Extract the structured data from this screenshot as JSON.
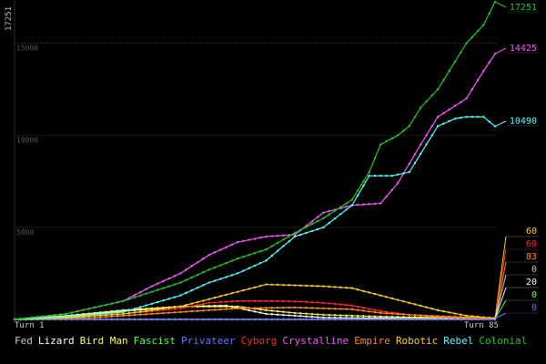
{
  "chart_data": {
    "type": "line",
    "y_axis_top_label": "17251",
    "y_ticks": [
      5000,
      10000,
      15000
    ],
    "ylim": [
      0,
      17251
    ],
    "x_range": [
      1,
      85
    ],
    "x_tick_labels": [
      "Turn 1",
      "Turn 85"
    ],
    "grid": true,
    "legend_placement": "bottom",
    "series": [
      {
        "name": "Fed",
        "color": "#c8c8c8",
        "end_label": "0",
        "x": [
          1,
          20,
          40,
          60,
          85
        ],
        "values": [
          0,
          0,
          0,
          0,
          0
        ]
      },
      {
        "name": "Lizard",
        "color": "#ffffff",
        "end_label": "20",
        "x": [
          1,
          10,
          20,
          30,
          38,
          45,
          55,
          65,
          75,
          85
        ],
        "values": [
          0,
          150,
          450,
          700,
          750,
          300,
          100,
          60,
          30,
          20
        ]
      },
      {
        "name": "Bird Man",
        "color": "#ffff55",
        "end_label": "60",
        "x": [
          1,
          10,
          20,
          30,
          40,
          45,
          50,
          55,
          60,
          65,
          70,
          75,
          80,
          85
        ],
        "values": [
          0,
          200,
          500,
          700,
          700,
          500,
          350,
          250,
          200,
          150,
          120,
          100,
          80,
          60
        ]
      },
      {
        "name": "Fascist",
        "color": "#55ff55",
        "end_label": "0",
        "x": [
          1,
          15,
          30,
          45,
          60,
          85
        ],
        "values": [
          0,
          0,
          0,
          0,
          0,
          0
        ]
      },
      {
        "name": "Privateer",
        "color": "#6f6fff",
        "end_label": "0",
        "x": [
          1,
          20,
          40,
          60,
          85
        ],
        "values": [
          0,
          0,
          0,
          0,
          0
        ]
      },
      {
        "name": "Cyborg",
        "color": "#ff2a2a",
        "end_label": "60",
        "x": [
          1,
          10,
          20,
          30,
          35,
          40,
          45,
          50,
          55,
          60,
          65,
          70,
          75,
          80,
          85
        ],
        "values": [
          0,
          100,
          300,
          600,
          900,
          1000,
          1000,
          980,
          900,
          750,
          450,
          250,
          150,
          100,
          60
        ]
      },
      {
        "name": "Crystalline",
        "color": "#ff55ff",
        "end_label": "14425",
        "x": [
          1,
          10,
          20,
          25,
          30,
          35,
          40,
          45,
          50,
          55,
          60,
          65,
          68,
          72,
          75,
          80,
          83,
          85
        ],
        "values": [
          0,
          300,
          1000,
          1800,
          2500,
          3500,
          4200,
          4500,
          4600,
          5800,
          6200,
          6300,
          7400,
          9500,
          11000,
          12000,
          13500,
          14425
        ]
      },
      {
        "name": "Empire",
        "color": "#ff8c1a",
        "end_label": "83",
        "x": [
          1,
          15,
          30,
          40,
          50,
          60,
          65,
          70,
          75,
          80,
          85
        ],
        "values": [
          0,
          100,
          400,
          600,
          650,
          550,
          350,
          250,
          180,
          120,
          83
        ]
      },
      {
        "name": "Robotic",
        "color": "#ffd21a",
        "end_label": "60",
        "x": [
          1,
          10,
          20,
          30,
          40,
          45,
          50,
          55,
          60,
          65,
          70,
          75,
          80,
          85
        ],
        "values": [
          0,
          100,
          300,
          700,
          1500,
          1900,
          1850,
          1800,
          1700,
          1300,
          900,
          500,
          200,
          60
        ]
      },
      {
        "name": "Rebel",
        "color": "#55ffff",
        "end_label": "10490",
        "x": [
          1,
          10,
          20,
          30,
          35,
          40,
          45,
          50,
          55,
          60,
          63,
          67,
          70,
          72,
          75,
          78,
          80,
          83,
          85
        ],
        "values": [
          0,
          150,
          400,
          1300,
          2000,
          2500,
          3200,
          4500,
          5000,
          6200,
          7800,
          7800,
          8000,
          9000,
          10500,
          10900,
          11000,
          11000,
          10490
        ]
      },
      {
        "name": "Colonial",
        "color": "#22c922",
        "end_label": "17251",
        "x": [
          1,
          10,
          20,
          30,
          35,
          40,
          45,
          50,
          55,
          60,
          63,
          65,
          68,
          70,
          72,
          75,
          78,
          80,
          83,
          85
        ],
        "values": [
          0,
          300,
          1000,
          2000,
          2700,
          3300,
          3800,
          4700,
          5500,
          6500,
          8000,
          9500,
          10000,
          10500,
          11500,
          12500,
          14000,
          15000,
          16000,
          17251
        ]
      }
    ]
  }
}
